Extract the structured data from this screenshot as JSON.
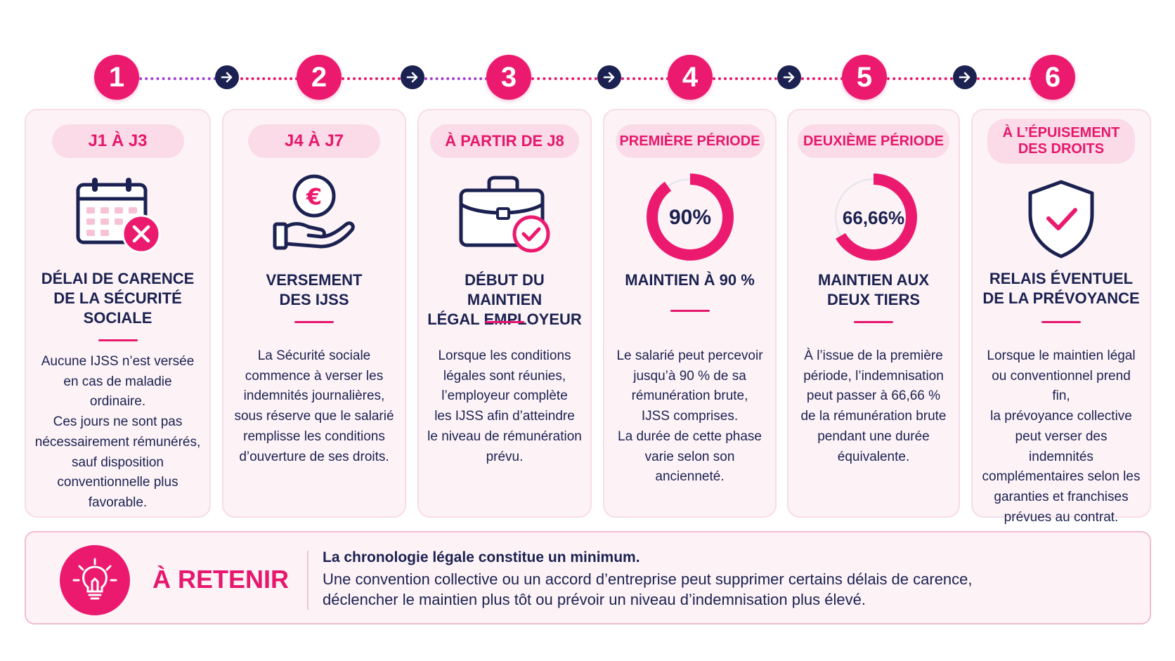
{
  "steps": [
    {
      "number": "1",
      "tag": "J1 À J3",
      "icon": "calendar-cross-icon",
      "title": "DÉLAI DE CARENCE\nDE LA SÉCURITÉ\nSOCIALE",
      "text": "Aucune IJSS n’est versée\nen cas de maladie\nordinaire.\nCes jours ne sont pas\nnécessairement rémunérés,\nsauf disposition\nconventionnelle plus\nfavorable."
    },
    {
      "number": "2",
      "tag": "J4 À J7",
      "icon": "euro-hand-icon",
      "title": "VERSEMENT\nDES IJSS",
      "text": "La Sécurité sociale\ncommence à verser les\nindemnités journalières,\nsous réserve que le salarié\nremplisse les conditions\nd’ouverture de ses droits."
    },
    {
      "number": "3",
      "tag": "À PARTIR DE J8",
      "icon": "briefcase-check-icon",
      "title": "DÉBUT DU MAINTIEN\nLÉGAL EMPLOYEUR",
      "text": "Lorsque les conditions\nlégales sont réunies,\nl’employeur complète\nles IJSS afin d’atteindre\nle niveau de rémunération\nprévu."
    },
    {
      "number": "4",
      "tag": "PREMIÈRE PÉRIODE",
      "icon": "donut-90-icon",
      "ring_label": "90%",
      "ring_value": 0.9,
      "title": "MAINTIEN À 90 %",
      "text": "Le salarié peut percevoir\njusqu’à 90 % de sa\nrémunération brute,\nIJSS comprises.\nLa durée de cette phase\nvarie selon son ancienneté."
    },
    {
      "number": "5",
      "tag": "DEUXIÈME PÉRIODE",
      "icon": "donut-6666-icon",
      "ring_label": "66,66%",
      "ring_value": 0.6666,
      "title": "MAINTIEN AUX\nDEUX TIERS",
      "text": "À l’issue de la première\npériode, l’indemnisation\npeut passer à 66,66 %\nde la rémunération brute\npendant une durée\néquivalente."
    },
    {
      "number": "6",
      "tag": "À L’ÉPUISEMENT\nDES DROITS",
      "icon": "shield-check-icon",
      "title": "RELAIS ÉVENTUEL\nDE LA PRÉVOYANCE",
      "text": "Lorsque le maintien légal\nou conventionnel prend fin,\nla prévoyance collective\npeut verser des indemnités\ncomplémentaires selon les\ngaranties et franchises\nprévues au contrat."
    }
  ],
  "banner": {
    "icon": "lightbulb-icon",
    "label": "À RETENIR",
    "strong": "La chronologie légale constitue un minimum.",
    "text": "Une convention collective ou un accord d’entreprise peut supprimer certains délais de carence,\ndéclencher le maintien plus tôt ou prévoir un niveau d’indemnisation plus élevé."
  },
  "colors": {
    "accent": "#ec1a6e",
    "navy": "#1b2150",
    "card_bg": "#fdf3f7",
    "pill_bg": "#fadbe7"
  }
}
